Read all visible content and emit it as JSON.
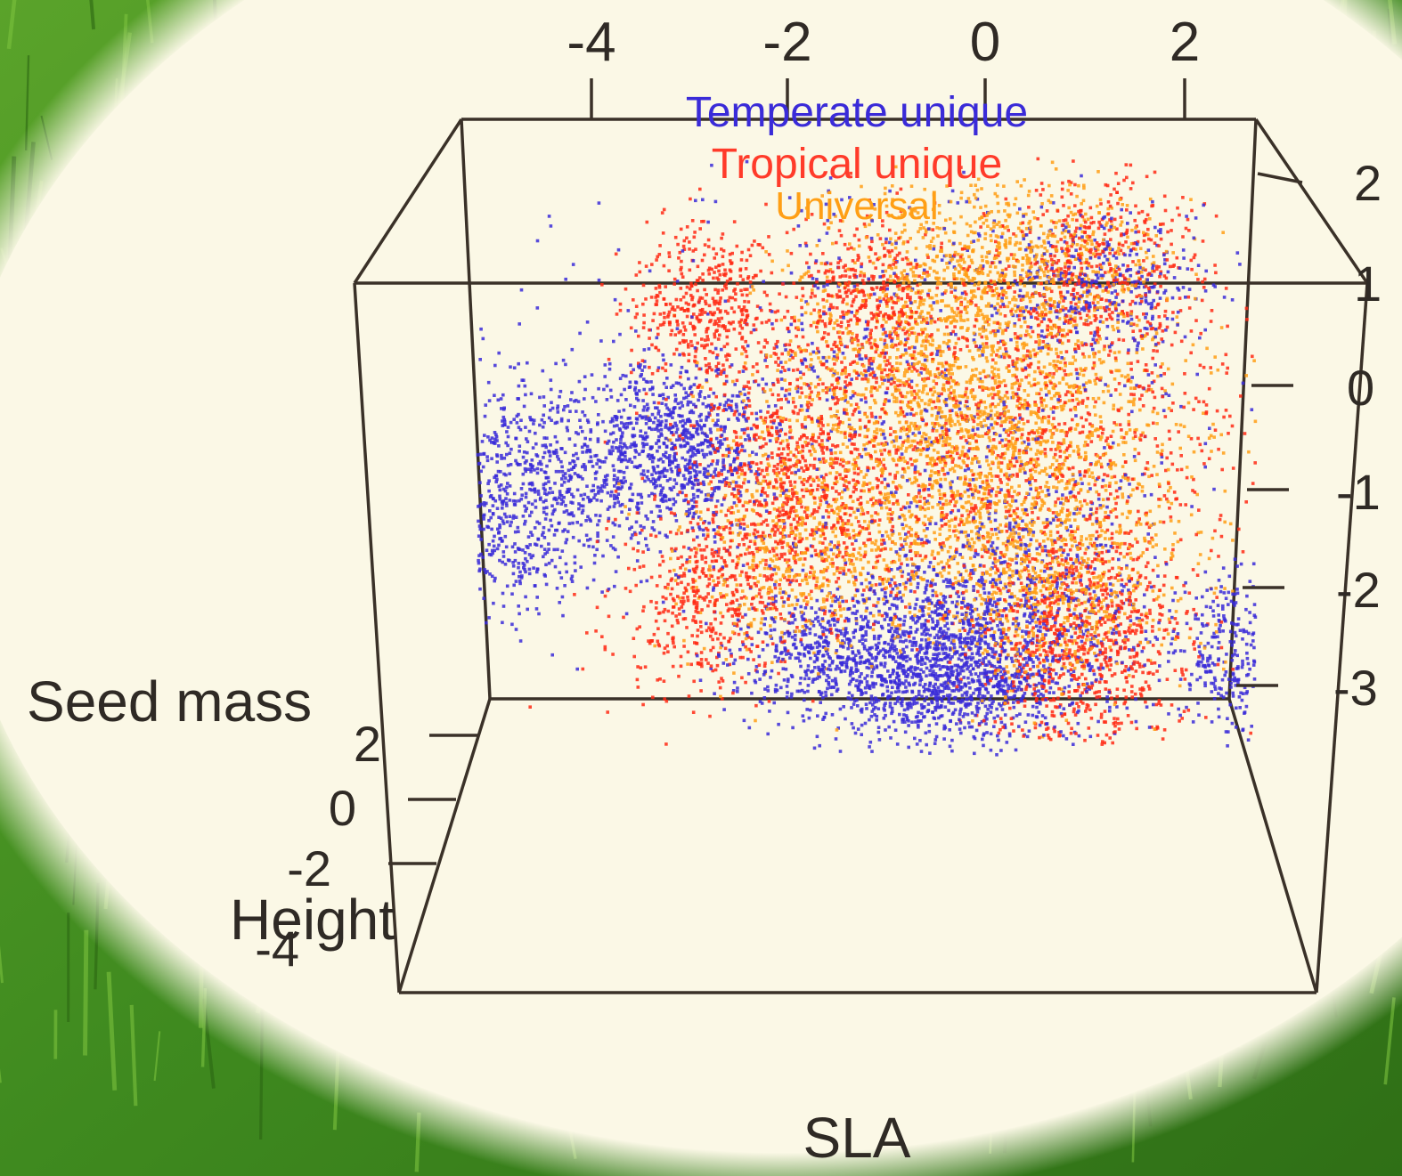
{
  "chart_data": {
    "type": "scatter",
    "projection": "3d",
    "xlabel": "SLA",
    "ylabel": "Height",
    "zlabel": "Seed mass",
    "x_ticks": [
      "-4",
      "-2",
      "0",
      "2"
    ],
    "y_ticks": [
      "2",
      "0",
      "-2",
      "-4"
    ],
    "z_ticks": [
      "2",
      "1",
      "0",
      "-1",
      "-2",
      "-3"
    ],
    "xlim": [
      -5,
      3
    ],
    "ylim": [
      -4,
      3
    ],
    "zlim": [
      -3.3,
      2.6
    ],
    "legend_position": "top",
    "series": [
      {
        "name": "Temperate unique",
        "color": "#3a2bd8",
        "clusters": [
          {
            "x": -4.3,
            "z": -0.7,
            "sx": 0.55,
            "sz": 0.6,
            "n": 900
          },
          {
            "x": -2.8,
            "z": -0.3,
            "sx": 0.45,
            "sz": 0.45,
            "n": 900
          },
          {
            "x": -0.2,
            "z": -2.6,
            "sx": 0.55,
            "sz": 0.45,
            "n": 1100
          },
          {
            "x": 0.5,
            "z": -2.1,
            "sx": 0.7,
            "sz": 0.7,
            "n": 900
          },
          {
            "x": -1.3,
            "z": -2.4,
            "sx": 0.5,
            "sz": 0.35,
            "n": 500
          },
          {
            "x": 1.4,
            "z": 1.4,
            "sx": 0.45,
            "sz": 0.35,
            "n": 350
          },
          {
            "x": 2.6,
            "z": -2.4,
            "sx": 0.25,
            "sz": 0.4,
            "n": 260
          },
          {
            "x": -0.5,
            "z": 0.4,
            "sx": 1.4,
            "sz": 1.2,
            "n": 600
          }
        ]
      },
      {
        "name": "Tropical unique",
        "color": "#ff2a14",
        "clusters": [
          {
            "x": -2.5,
            "z": 1.2,
            "sx": 0.35,
            "sz": 0.4,
            "n": 450
          },
          {
            "x": -0.9,
            "z": 1.2,
            "sx": 0.35,
            "sz": 0.4,
            "n": 400
          },
          {
            "x": 1.4,
            "z": 1.6,
            "sx": 0.5,
            "sz": 0.5,
            "n": 450
          },
          {
            "x": -1.6,
            "z": -0.7,
            "sx": 0.55,
            "sz": 0.65,
            "n": 800
          },
          {
            "x": 0.5,
            "z": -0.2,
            "sx": 1.2,
            "sz": 1.0,
            "n": 1200
          },
          {
            "x": 1.2,
            "z": -2.3,
            "sx": 0.5,
            "sz": 0.6,
            "n": 800
          },
          {
            "x": -2.5,
            "z": -1.8,
            "sx": 0.45,
            "sz": 0.5,
            "n": 450
          }
        ]
      },
      {
        "name": "Universal",
        "color": "#ff9f15",
        "clusters": [
          {
            "x": 0.0,
            "z": 0.6,
            "sx": 0.9,
            "sz": 0.9,
            "n": 1400
          },
          {
            "x": 0.3,
            "z": -0.5,
            "sx": 1.0,
            "sz": 0.8,
            "n": 1300
          },
          {
            "x": -1.6,
            "z": -1.4,
            "sx": 0.6,
            "sz": 0.5,
            "n": 500
          },
          {
            "x": 0.9,
            "z": -1.7,
            "sx": 0.6,
            "sz": 0.5,
            "n": 600
          },
          {
            "x": 0.6,
            "z": 1.7,
            "sx": 0.7,
            "sz": 0.35,
            "n": 500
          }
        ]
      }
    ]
  }
}
